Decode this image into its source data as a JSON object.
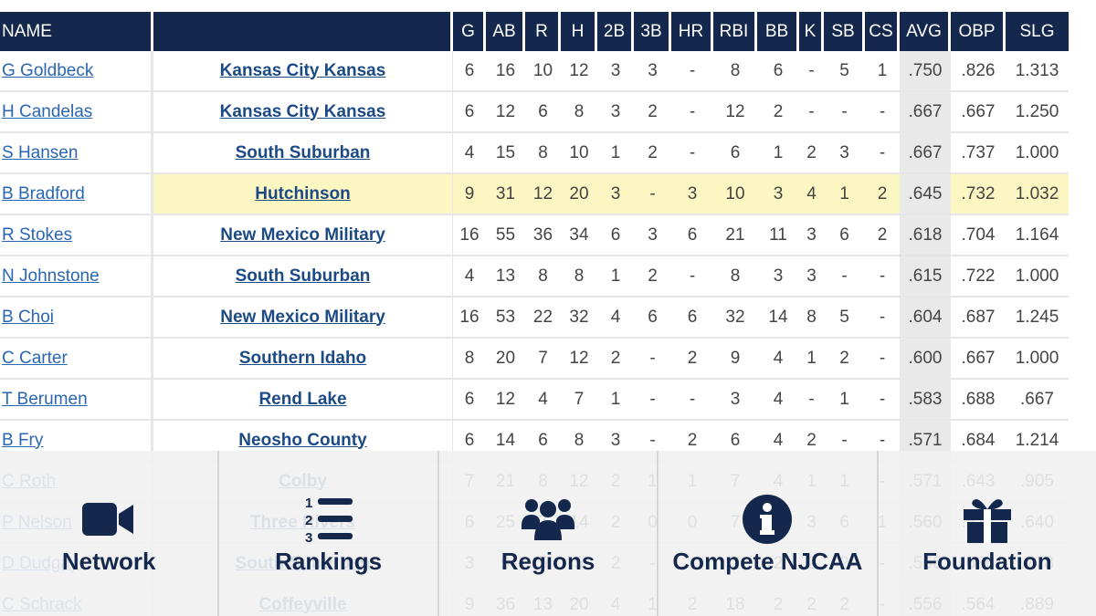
{
  "table": {
    "columns": [
      "NAME",
      "",
      "G",
      "AB",
      "R",
      "H",
      "2B",
      "3B",
      "HR",
      "RBI",
      "BB",
      "K",
      "SB",
      "CS",
      "AVG",
      "OBP",
      "SLG"
    ],
    "rows": [
      {
        "name": "G Goldbeck",
        "team": "Kansas City Kansas",
        "stats": [
          "6",
          "16",
          "10",
          "12",
          "3",
          "3",
          "-",
          "8",
          "6",
          "-",
          "5",
          "1",
          ".750",
          ".826",
          "1.313"
        ]
      },
      {
        "name": "H Candelas",
        "team": "Kansas City Kansas",
        "stats": [
          "6",
          "12",
          "6",
          "8",
          "3",
          "2",
          "-",
          "12",
          "2",
          "-",
          "-",
          "-",
          ".667",
          ".667",
          "1.250"
        ]
      },
      {
        "name": "S Hansen",
        "team": "South Suburban",
        "stats": [
          "4",
          "15",
          "8",
          "10",
          "1",
          "2",
          "-",
          "6",
          "1",
          "2",
          "3",
          "-",
          ".667",
          ".737",
          "1.000"
        ]
      },
      {
        "name": "B Bradford",
        "team": "Hutchinson",
        "stats": [
          "9",
          "31",
          "12",
          "20",
          "3",
          "-",
          "3",
          "10",
          "3",
          "4",
          "1",
          "2",
          ".645",
          ".732",
          "1.032"
        ],
        "highlighted": true
      },
      {
        "name": "R Stokes",
        "team": "New Mexico Military",
        "stats": [
          "16",
          "55",
          "36",
          "34",
          "6",
          "3",
          "6",
          "21",
          "11",
          "3",
          "6",
          "2",
          ".618",
          ".704",
          "1.164"
        ]
      },
      {
        "name": "N Johnstone",
        "team": "South Suburban",
        "stats": [
          "4",
          "13",
          "8",
          "8",
          "1",
          "2",
          "-",
          "8",
          "3",
          "3",
          "-",
          "-",
          ".615",
          ".722",
          "1.000"
        ]
      },
      {
        "name": "B Choi",
        "team": "New Mexico Military",
        "stats": [
          "16",
          "53",
          "22",
          "32",
          "4",
          "6",
          "6",
          "32",
          "14",
          "8",
          "5",
          "-",
          ".604",
          ".687",
          "1.245"
        ]
      },
      {
        "name": "C Carter",
        "team": "Southern Idaho",
        "stats": [
          "8",
          "20",
          "7",
          "12",
          "2",
          "-",
          "2",
          "9",
          "4",
          "1",
          "2",
          "-",
          ".600",
          ".667",
          "1.000"
        ]
      },
      {
        "name": "T Berumen",
        "team": "Rend Lake",
        "stats": [
          "6",
          "12",
          "4",
          "7",
          "1",
          "-",
          "-",
          "3",
          "4",
          "-",
          "1",
          "-",
          ".583",
          ".688",
          ".667"
        ]
      },
      {
        "name": "B Fry",
        "team": "Neosho County",
        "stats": [
          "6",
          "14",
          "6",
          "8",
          "3",
          "-",
          "2",
          "6",
          "4",
          "2",
          "-",
          "-",
          ".571",
          ".684",
          "1.214"
        ]
      },
      {
        "name": "C Roth",
        "team": "Colby",
        "stats": [
          "7",
          "21",
          "8",
          "12",
          "2",
          "1",
          "1",
          "7",
          "4",
          "1",
          "1",
          "-",
          ".571",
          ".643",
          ".905"
        ]
      },
      {
        "name": "P Nelson",
        "team": "Three Rivers",
        "stats": [
          "6",
          "25",
          "7",
          "14",
          "2",
          "0",
          "0",
          "7",
          "1",
          "3",
          "6",
          "1",
          ".560",
          ".577",
          ".640"
        ]
      },
      {
        "name": "D Dudgay",
        "team": "South Suburban",
        "stats": [
          "3",
          "9",
          "5",
          "5",
          "2",
          "-",
          "-",
          "2",
          "2",
          "2",
          "2",
          "-",
          ".556",
          ".636",
          ".778"
        ]
      },
      {
        "name": "C Schrack",
        "team": "Coffeyville",
        "stats": [
          "9",
          "36",
          "13",
          "20",
          "4",
          "1",
          "2",
          "18",
          "2",
          "2",
          "2",
          "-",
          ".556",
          ".564",
          ".889"
        ]
      }
    ]
  },
  "nav": {
    "items": [
      {
        "label": "Network",
        "icon": "video-camera-icon"
      },
      {
        "label": "Rankings",
        "icon": "numbered-list-icon"
      },
      {
        "label": "Regions",
        "icon": "users-group-icon"
      },
      {
        "label": "Compete NJCAA",
        "icon": "info-circle-icon"
      },
      {
        "label": "Foundation",
        "icon": "gift-icon"
      }
    ]
  },
  "colors": {
    "header_bg": "#14284d",
    "link_blue": "#2a66b3",
    "team_blue": "#1c4a85",
    "highlight": "#fbf6c2",
    "avg_col": "#e9e9e9"
  }
}
